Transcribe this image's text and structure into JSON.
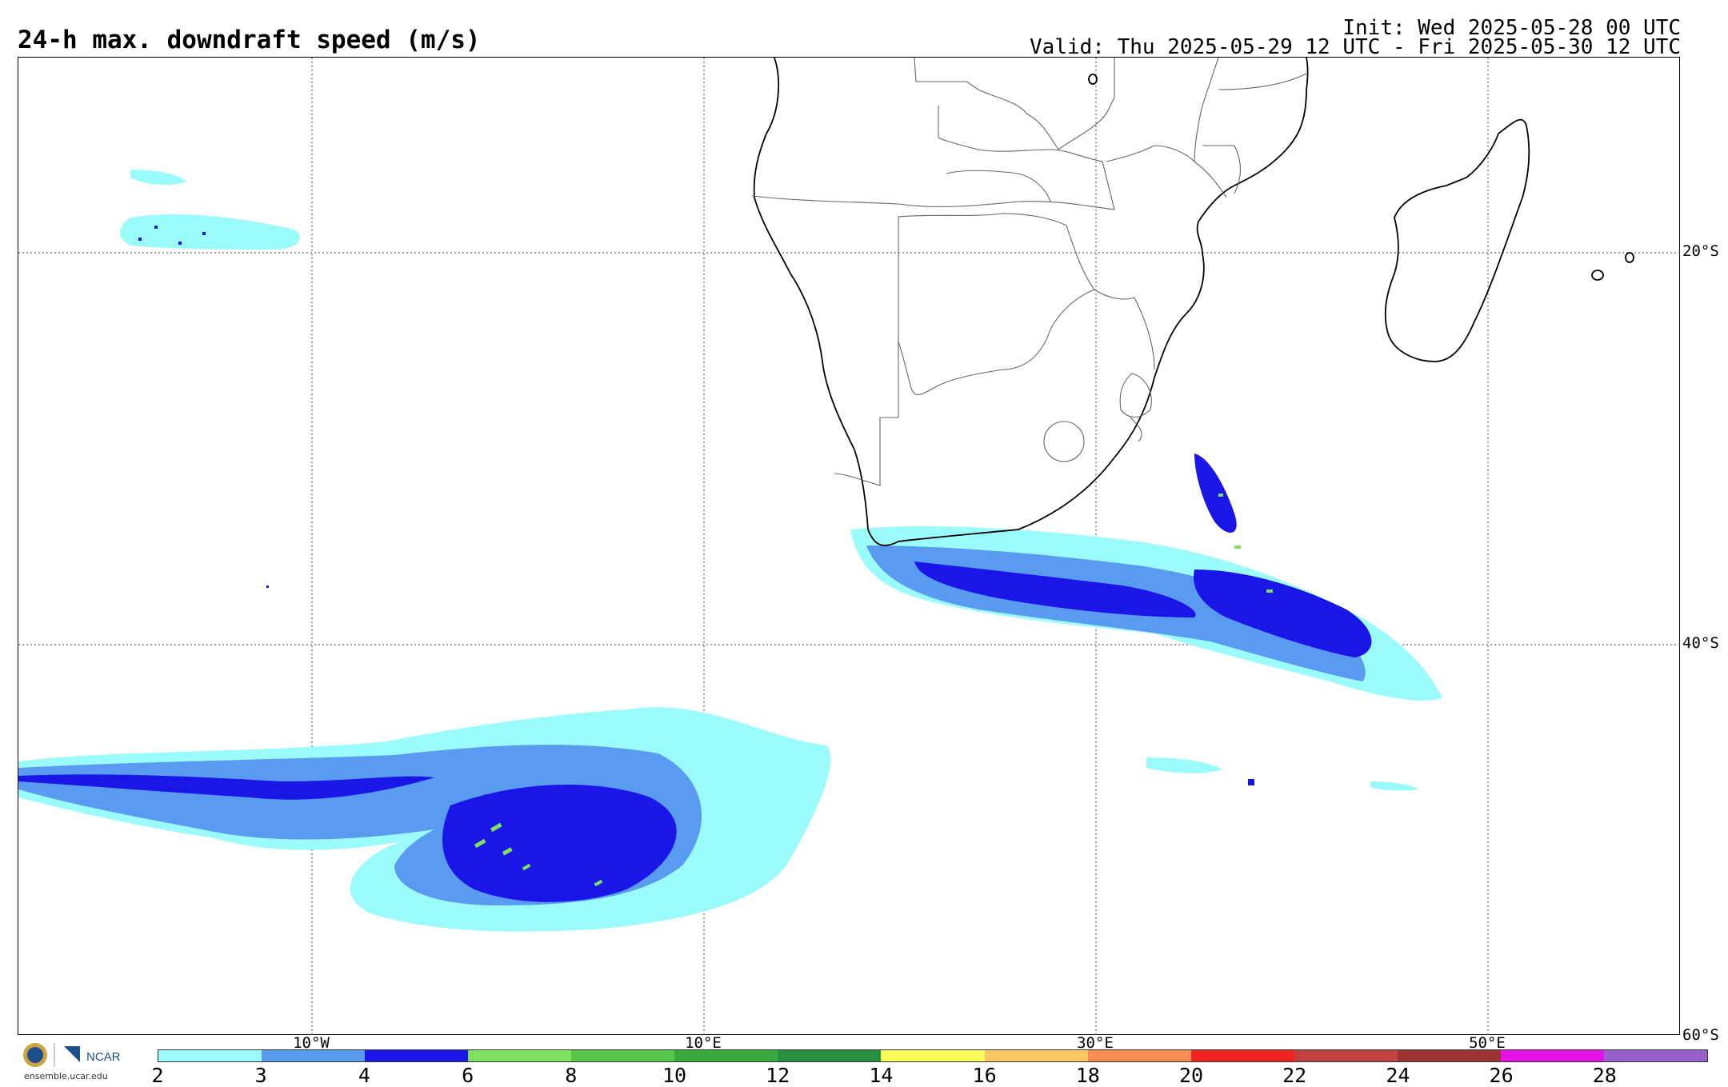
{
  "title": "24-h max. downdraft speed (m/s)",
  "init": "Init: Wed 2025-05-28 00 UTC",
  "valid": "Valid: Thu 2025-05-29 12 UTC - Fri 2025-05-30 12 UTC",
  "lat_labels": [
    "20°S",
    "40°S",
    "60°S"
  ],
  "lon_labels": [
    "10°W",
    "10°E",
    "30°E",
    "50°E"
  ],
  "colorbar": {
    "ticks": [
      "2",
      "3",
      "4",
      "6",
      "8",
      "10",
      "12",
      "14",
      "16",
      "18",
      "20",
      "22",
      "24",
      "26",
      "28"
    ],
    "colors": [
      "#9bfbfb",
      "#5a9bf2",
      "#1a16e8",
      "#7fdf5f",
      "#55c64a",
      "#37ab3d",
      "#279040",
      "#fbfb59",
      "#fcc760",
      "#fb8c51",
      "#f52424",
      "#c24040",
      "#9c3434",
      "#e613e6",
      "#9a5fcf"
    ]
  },
  "logo": {
    "org": "NCAR",
    "url": "ensemble.ucar.edu"
  },
  "colors": {
    "light": "#9bfbfb",
    "mid": "#5a9bf2",
    "dark": "#1a16e8",
    "green": "#7fdf5f"
  }
}
